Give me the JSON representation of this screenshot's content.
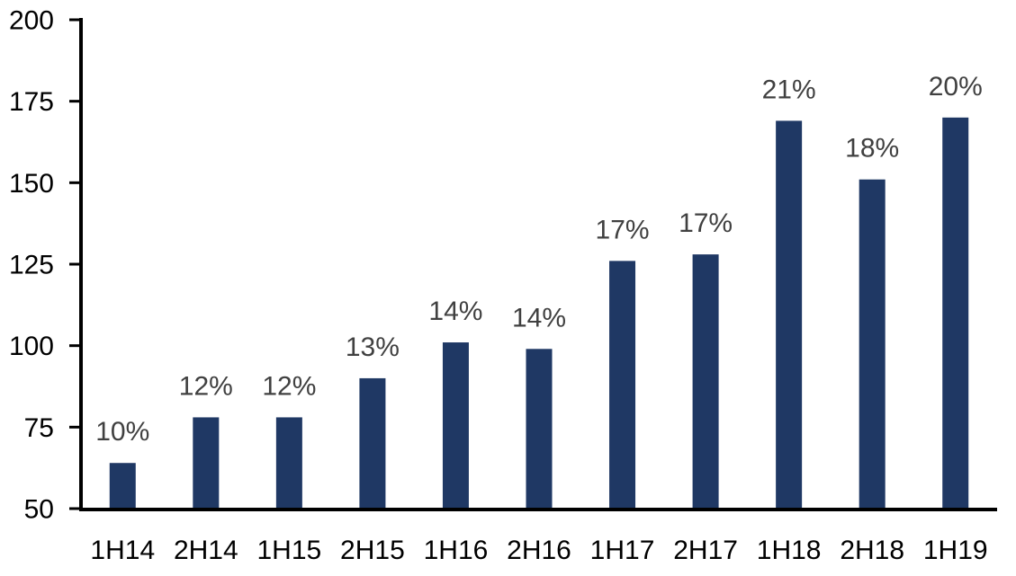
{
  "chart_data": {
    "type": "bar",
    "title": "",
    "xlabel": "",
    "ylabel": "",
    "categories": [
      "1H14",
      "2H14",
      "1H15",
      "2H15",
      "1H16",
      "2H16",
      "1H17",
      "2H17",
      "1H18",
      "2H18",
      "1H19"
    ],
    "values": [
      64,
      78,
      78,
      90,
      101,
      99,
      126,
      128,
      169,
      151,
      170
    ],
    "bar_labels": [
      "10%",
      "12%",
      "12%",
      "13%",
      "14%",
      "14%",
      "17%",
      "17%",
      "21%",
      "18%",
      "20%"
    ],
    "ylim": [
      50,
      200
    ],
    "yticks": [
      50,
      75,
      100,
      125,
      150,
      175,
      200
    ],
    "grid": false,
    "legend": false,
    "layout": {
      "background": "#ffffff",
      "bar_color": "#1f3864",
      "data_label_color": "#404040",
      "axis_color": "#000000",
      "tick_label_color": "#000000",
      "font_size_ticks": 30,
      "font_size_categories": 30,
      "font_size_data_labels": 30
    }
  }
}
